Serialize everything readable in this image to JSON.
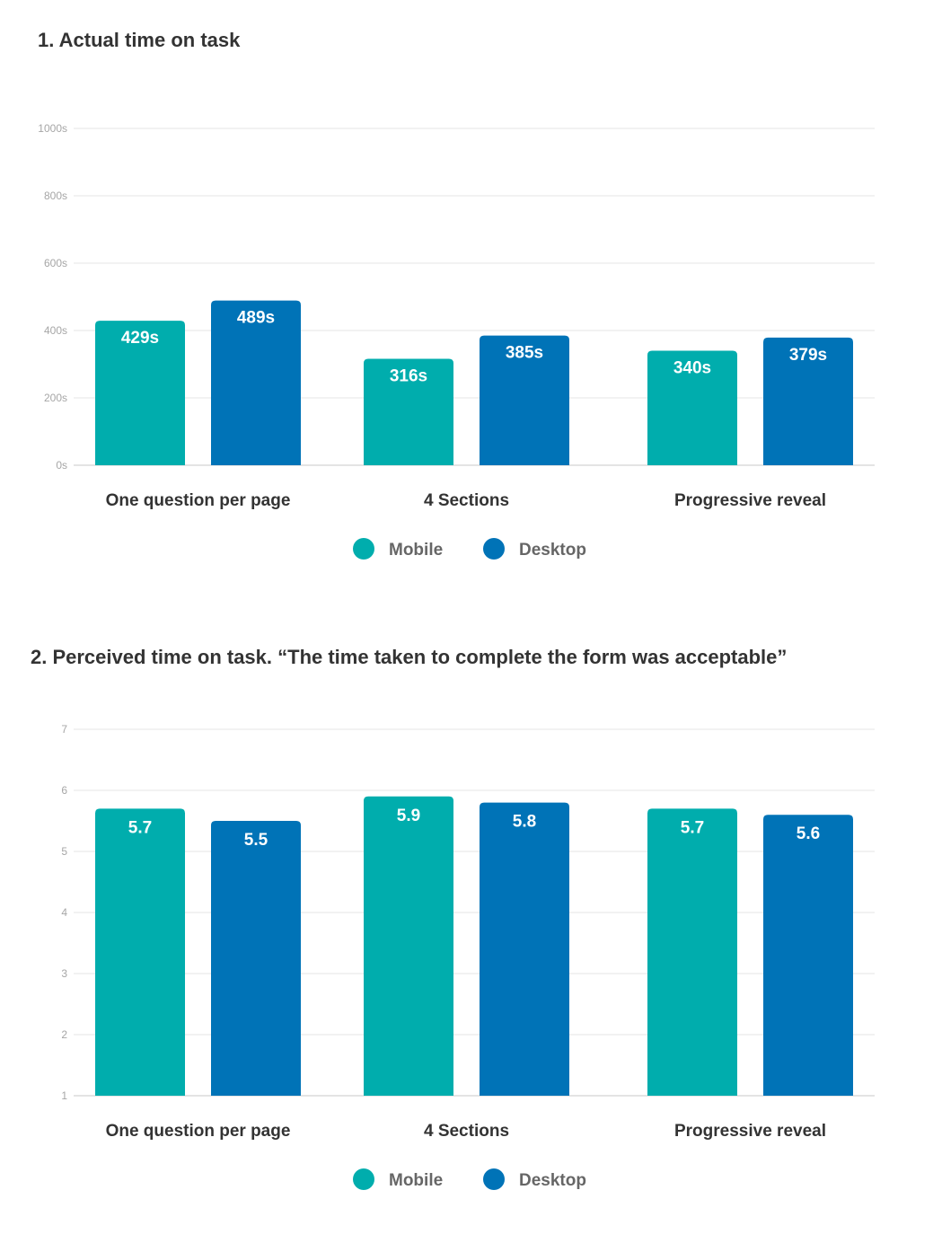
{
  "chart_data": [
    {
      "type": "bar",
      "title": "1. Actual time on task",
      "categories": [
        "One question per page",
        "4 Sections",
        "Progressive reveal"
      ],
      "series": [
        {
          "name": "Mobile",
          "color": "#00ADAD",
          "values": [
            429,
            316,
            340
          ],
          "labels": [
            "429s",
            "316s",
            "340s"
          ]
        },
        {
          "name": "Desktop",
          "color": "#0073B7",
          "values": [
            489,
            385,
            379
          ],
          "labels": [
            "489s",
            "385s",
            "379s"
          ]
        }
      ],
      "ylim": [
        0,
        1000
      ],
      "yticks": [
        0,
        200,
        400,
        600,
        800,
        1000
      ],
      "ytick_labels": [
        "0s",
        "200s",
        "400s",
        "600s",
        "800s",
        "1000s"
      ],
      "grid": true,
      "legend": "bottom-center"
    },
    {
      "type": "bar",
      "title": "2. Perceived time on task. “The time taken to complete the form was acceptable”",
      "categories": [
        "One question per page",
        "4 Sections",
        "Progressive reveal"
      ],
      "series": [
        {
          "name": "Mobile",
          "color": "#00ADAD",
          "values": [
            5.7,
            5.9,
            5.7
          ],
          "labels": [
            "5.7",
            "5.9",
            "5.7"
          ]
        },
        {
          "name": "Desktop",
          "color": "#0073B7",
          "values": [
            5.5,
            5.8,
            5.6
          ],
          "labels": [
            "5.5",
            "5.8",
            "5.6"
          ]
        }
      ],
      "ylim": [
        1,
        7
      ],
      "yticks": [
        1,
        2,
        3,
        4,
        5,
        6,
        7
      ],
      "ytick_labels": [
        "1",
        "2",
        "3",
        "4",
        "5",
        "6",
        "7"
      ],
      "grid": true,
      "legend": "bottom-center"
    }
  ]
}
